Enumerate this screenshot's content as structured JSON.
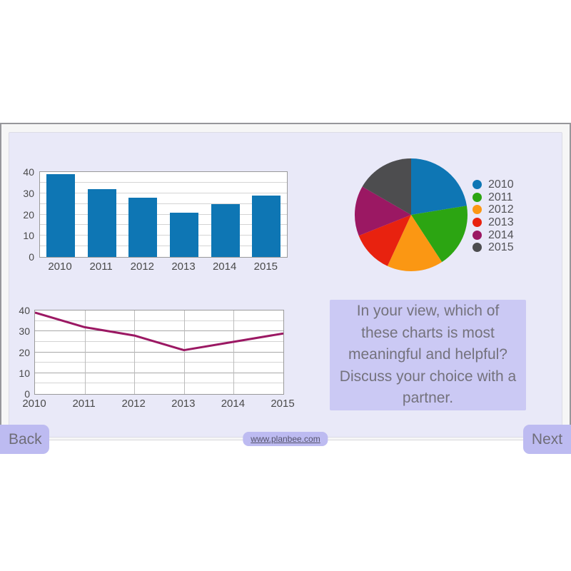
{
  "question_box": {
    "text": "In your view, which of these charts is most meaningful and helpful? Discuss your choice with a partner."
  },
  "footer": {
    "back_label": "Back",
    "next_label": "Next",
    "link_text": "www.planbee.com"
  },
  "colors": {
    "bar_fill": "#0e76b4",
    "line_stroke": "#9b1863",
    "pie_slices": [
      "#0e76b4",
      "#2ca512",
      "#fb9713",
      "#e8220f",
      "#9b1863",
      "#4d4d4f"
    ],
    "panel_bg": "#e9e9f8",
    "question_bg": "#cbc9f4",
    "button_bg": "#bdbbf1"
  },
  "chart_data": [
    {
      "type": "bar",
      "title": "",
      "categories": [
        "2010",
        "2011",
        "2012",
        "2013",
        "2014",
        "2015"
      ],
      "values": [
        39,
        32,
        28,
        21,
        25,
        29
      ],
      "xlabel": "",
      "ylabel": "",
      "ylim": [
        0,
        40
      ],
      "ytick_labels": [
        0,
        10,
        20,
        30,
        40
      ],
      "grid_step": 5,
      "grid": true,
      "bar_color": "#0e76b4",
      "legend_position": "none"
    },
    {
      "type": "pie",
      "title": "",
      "categories": [
        "2010",
        "2011",
        "2012",
        "2013",
        "2014",
        "2015"
      ],
      "values": [
        39,
        32,
        28,
        21,
        25,
        29
      ],
      "colors": [
        "#0e76b4",
        "#2ca512",
        "#fb9713",
        "#e8220f",
        "#9b1863",
        "#4d4d4f"
      ],
      "start_angle_deg": 0,
      "direction": "clockwise",
      "legend_position": "right",
      "legend_labels": [
        "2010",
        "2011",
        "2012",
        "2013",
        "2014",
        "2015"
      ]
    },
    {
      "type": "line",
      "title": "",
      "categories": [
        "2010",
        "2011",
        "2012",
        "2013",
        "2014",
        "2015"
      ],
      "values": [
        39,
        32,
        28,
        21,
        25,
        29
      ],
      "xlabel": "",
      "ylabel": "",
      "ylim": [
        0,
        40
      ],
      "ytick_labels": [
        0,
        10,
        20,
        30,
        40
      ],
      "grid_step": 5,
      "grid": true,
      "line_color": "#9b1863",
      "legend_position": "none"
    }
  ]
}
